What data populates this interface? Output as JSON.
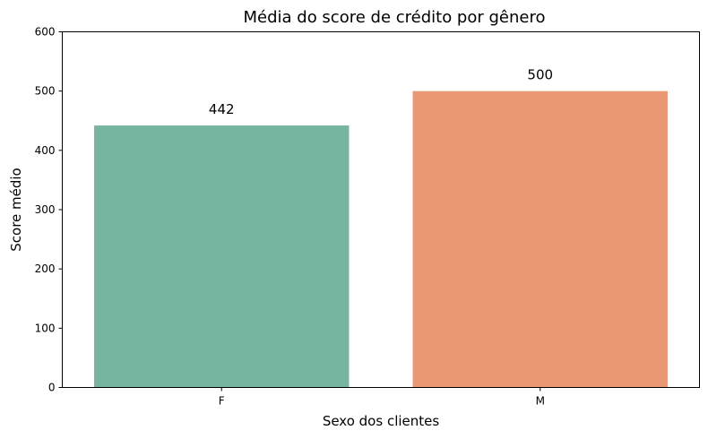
{
  "chart_data": {
    "type": "bar",
    "title": "Média do score de crédito por gênero",
    "xlabel": "Sexo dos clientes",
    "ylabel": "Score médio",
    "categories": [
      "F",
      "M"
    ],
    "values": [
      442,
      500
    ],
    "data_labels": [
      "442",
      "500"
    ],
    "colors": [
      "#76b5a0",
      "#e99775"
    ],
    "ylim": [
      0,
      600
    ],
    "yticks": [
      0,
      100,
      200,
      300,
      400,
      500,
      600
    ],
    "grid": false,
    "legend": "none"
  }
}
